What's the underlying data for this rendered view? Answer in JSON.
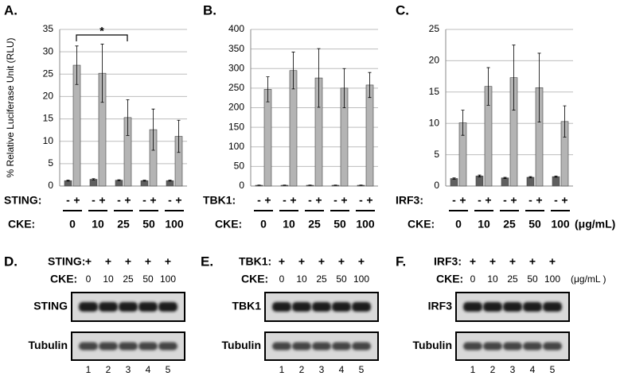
{
  "chart_data": [
    {
      "type": "bar",
      "panel": "A.",
      "y_label": "% Relative Luciferase Unit (RLU)",
      "ylim": [
        0,
        35
      ],
      "yticks": [
        0,
        5,
        10,
        15,
        20,
        25,
        30,
        35
      ],
      "grid": true,
      "factor_label": "STING:",
      "cke_label": "CKE:",
      "categories": [
        "0",
        "10",
        "25",
        "50",
        "100"
      ],
      "annotation": "*",
      "series": [
        {
          "name": "-",
          "color": "#5f5f5f",
          "values": [
            1.2,
            1.5,
            1.3,
            1.2,
            1.2
          ],
          "errors": [
            0.1,
            0.15,
            0.1,
            0.1,
            0.1
          ]
        },
        {
          "name": "+",
          "color": "#b4b4b4",
          "values": [
            27,
            25.2,
            15.3,
            12.6,
            11.1
          ],
          "errors": [
            4.3,
            6.5,
            4,
            4.6,
            3.6
          ]
        }
      ]
    },
    {
      "type": "bar",
      "panel": "B.",
      "ylim": [
        0,
        400
      ],
      "yticks": [
        0,
        50,
        100,
        150,
        200,
        250,
        300,
        350,
        400
      ],
      "grid": true,
      "factor_label": "TBK1:",
      "cke_label": "CKE:",
      "categories": [
        "0",
        "10",
        "25",
        "50",
        "100"
      ],
      "series": [
        {
          "name": "-",
          "color": "#5f5f5f",
          "values": [
            2,
            2,
            2,
            2,
            2
          ],
          "errors": [
            0.5,
            0.5,
            0.5,
            0.5,
            0.5
          ]
        },
        {
          "name": "+",
          "color": "#b4b4b4",
          "values": [
            247,
            295,
            276,
            250,
            258
          ],
          "errors": [
            32,
            47,
            75,
            50,
            32
          ]
        }
      ]
    },
    {
      "type": "bar",
      "panel": "C.",
      "ylim": [
        0,
        25
      ],
      "yticks": [
        0,
        5,
        10,
        15,
        20,
        25
      ],
      "grid": true,
      "factor_label": "IRF3:",
      "cke_label": "CKE:",
      "unit": "(μg/mL)",
      "categories": [
        "0",
        "10",
        "25",
        "50",
        "100"
      ],
      "series": [
        {
          "name": "-",
          "color": "#5f5f5f",
          "values": [
            1.2,
            1.6,
            1.3,
            1.4,
            1.5
          ],
          "errors": [
            0.1,
            0.15,
            0.1,
            0.1,
            0.1
          ]
        },
        {
          "name": "+",
          "color": "#b4b4b4",
          "values": [
            10.1,
            15.9,
            17.3,
            15.7,
            10.3
          ],
          "errors": [
            2,
            3,
            5.2,
            5.5,
            2.5
          ]
        }
      ]
    }
  ],
  "blots": [
    {
      "panel": "D.",
      "factor_label": "STING:",
      "factor_levels": [
        "+",
        "+",
        "+",
        "+",
        "+"
      ],
      "cke_label": "CKE:",
      "cke_values": [
        "0",
        "10",
        "25",
        "50",
        "100"
      ],
      "rows": [
        "STING",
        "Tubulin"
      ],
      "lanes": [
        "1",
        "2",
        "3",
        "4",
        "5"
      ]
    },
    {
      "panel": "E.",
      "factor_label": "TBK1:",
      "factor_levels": [
        "+",
        "+",
        "+",
        "+",
        "+"
      ],
      "cke_label": "CKE:",
      "cke_values": [
        "0",
        "10",
        "25",
        "50",
        "100"
      ],
      "rows": [
        "TBK1",
        "Tubulin"
      ],
      "lanes": [
        "1",
        "2",
        "3",
        "4",
        "5"
      ]
    },
    {
      "panel": "F.",
      "factor_label": "IRF3:",
      "factor_levels": [
        "+",
        "+",
        "+",
        "+",
        "+"
      ],
      "cke_label": "CKE:",
      "cke_values": [
        "0",
        "10",
        "25",
        "50",
        "100"
      ],
      "unit": "(μg/mL )",
      "rows": [
        "IRF3",
        "Tubulin"
      ],
      "lanes": [
        "1",
        "2",
        "3",
        "4",
        "5"
      ]
    }
  ]
}
